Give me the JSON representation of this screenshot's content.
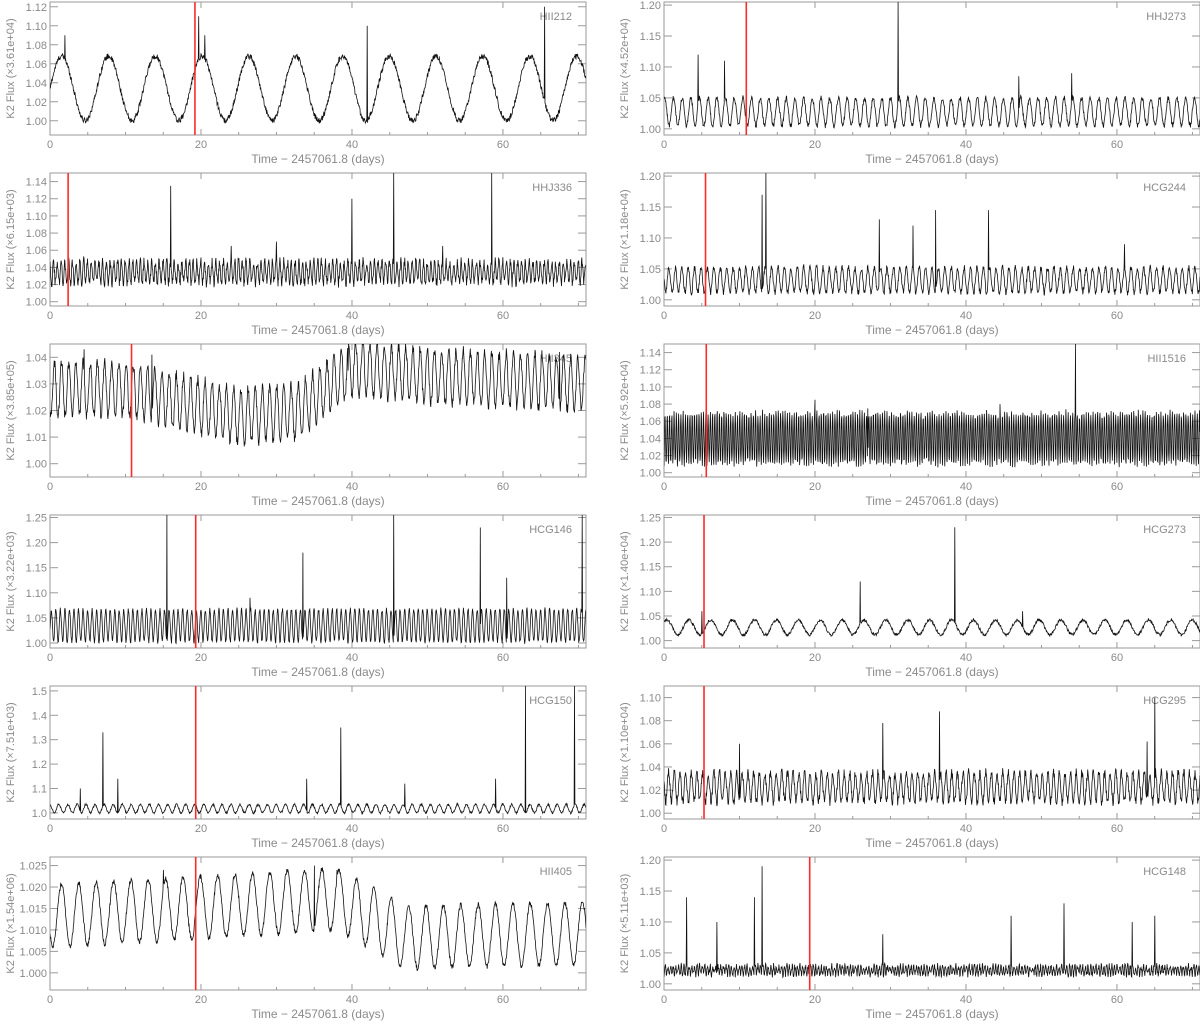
{
  "colors": {
    "trace": "#111111",
    "marker": "#ff2a2a",
    "axis": "#8a8a8a",
    "frame": "#9a9a9a"
  },
  "chart_data": [
    {
      "type": "line",
      "label": "HII212",
      "xlabel": "Time − 2457061.8 (days)",
      "ylabel": "K2 Flux (×3.61e+04)",
      "xlim": [
        0,
        71
      ],
      "ylim": [
        0.985,
        1.125
      ],
      "yticks": [
        1.0,
        1.02,
        1.04,
        1.06,
        1.08,
        1.1,
        1.12
      ],
      "xticks": [
        0,
        20,
        40,
        60
      ],
      "marker_x": 19.2,
      "baseline": 1.0,
      "amplitude": 0.068,
      "period": 6.2,
      "shape": "sine",
      "noise": 0.003,
      "spikes": [
        [
          19.7,
          1.11
        ],
        [
          42.0,
          1.1
        ],
        [
          65.5,
          1.12
        ],
        [
          2.0,
          1.09
        ],
        [
          20.5,
          1.09
        ]
      ]
    },
    {
      "type": "line",
      "label": "HHJ273",
      "xlabel": "Time − 2457061.8 (days)",
      "ylabel": "K2 Flux (×4.52e+04)",
      "xlim": [
        0,
        71
      ],
      "ylim": [
        0.99,
        1.205
      ],
      "yticks": [
        1.0,
        1.05,
        1.1,
        1.15,
        1.2
      ],
      "xticks": [
        0,
        20,
        40,
        60
      ],
      "marker_x": 10.9,
      "baseline": 1.005,
      "amplitude": 0.045,
      "period": 1.15,
      "shape": "sine",
      "noise": 0.004,
      "spikes": [
        [
          31.0,
          1.205
        ],
        [
          4.5,
          1.12
        ],
        [
          8.0,
          1.11
        ],
        [
          54.0,
          1.09
        ],
        [
          47.0,
          1.085
        ]
      ]
    },
    {
      "type": "line",
      "label": "HHJ336",
      "xlabel": "Time − 2457061.8 (days)",
      "ylabel": "K2 Flux (×6.15e+03)",
      "xlim": [
        0,
        71
      ],
      "ylim": [
        0.995,
        1.15
      ],
      "yticks": [
        1.0,
        1.02,
        1.04,
        1.06,
        1.08,
        1.1,
        1.12,
        1.14
      ],
      "xticks": [
        0,
        20,
        40,
        60
      ],
      "marker_x": 2.4,
      "baseline": 1.022,
      "amplitude": 0.025,
      "period": 0.5,
      "shape": "sine",
      "noise": 0.006,
      "spikes": [
        [
          16.0,
          1.135
        ],
        [
          40.0,
          1.12
        ],
        [
          45.5,
          1.15
        ],
        [
          58.5,
          1.15
        ],
        [
          30.0,
          1.07
        ],
        [
          24.0,
          1.065
        ],
        [
          52.0,
          1.065
        ]
      ]
    },
    {
      "type": "line",
      "label": "HCG244",
      "xlabel": "Time − 2457061.8 (days)",
      "ylabel": "K2 Flux (×1.18e+04)",
      "xlim": [
        0,
        71
      ],
      "ylim": [
        0.99,
        1.205
      ],
      "yticks": [
        1.0,
        1.05,
        1.1,
        1.15,
        1.2
      ],
      "xticks": [
        0,
        20,
        40,
        60
      ],
      "marker_x": 5.5,
      "baseline": 1.012,
      "amplitude": 0.04,
      "period": 0.85,
      "shape": "sine",
      "noise": 0.005,
      "spikes": [
        [
          13.0,
          1.17
        ],
        [
          13.5,
          1.205
        ],
        [
          28.5,
          1.13
        ],
        [
          33.0,
          1.12
        ],
        [
          36.0,
          1.145
        ],
        [
          43.0,
          1.145
        ],
        [
          61.0,
          1.09
        ]
      ]
    },
    {
      "type": "line",
      "label": "HII345",
      "xlabel": "Time − 2457061.8 (days)",
      "ylabel": "K2 Flux (×3.85e+05)",
      "xlim": [
        0,
        71
      ],
      "ylim": [
        0.995,
        1.045
      ],
      "yticks": [
        1.0,
        1.01,
        1.02,
        1.03,
        1.04
      ],
      "xticks": [
        0,
        20,
        40,
        60
      ],
      "marker_x": 10.8,
      "baseline": 1.018,
      "amplitude": 0.02,
      "period": 0.95,
      "shape": "sine",
      "noise": 0.002,
      "trend": [
        [
          0,
          0
        ],
        [
          10,
          0
        ],
        [
          25,
          -0.01
        ],
        [
          33,
          -0.008
        ],
        [
          40,
          0.008
        ],
        [
          50,
          0.005
        ],
        [
          71,
          0.002
        ]
      ],
      "spikes": [
        [
          4.5,
          1.043
        ],
        [
          13.5,
          1.041
        ],
        [
          39.5,
          1.035
        ],
        [
          59.5,
          1.039
        ],
        [
          67.5,
          1.042
        ]
      ]
    },
    {
      "type": "line",
      "label": "HII1516",
      "xlabel": "Time − 2457061.8 (days)",
      "ylabel": "K2 Flux (×5.92e+04)",
      "xlim": [
        0,
        71
      ],
      "ylim": [
        0.995,
        1.15
      ],
      "yticks": [
        1.0,
        1.02,
        1.04,
        1.06,
        1.08,
        1.1,
        1.12,
        1.14
      ],
      "xticks": [
        0,
        20,
        40,
        60
      ],
      "marker_x": 5.6,
      "baseline": 1.01,
      "amplitude": 0.06,
      "period": 0.3,
      "shape": "sine",
      "noise": 0.004,
      "spikes": [
        [
          54.5,
          1.15
        ],
        [
          20.0,
          1.085
        ],
        [
          44.5,
          1.08
        ],
        [
          27.0,
          1.075
        ]
      ]
    },
    {
      "type": "line",
      "label": "HCG146",
      "xlabel": "Time − 2457061.8 (days)",
      "ylabel": "K2 Flux (×3.22e+03)",
      "xlim": [
        0,
        71
      ],
      "ylim": [
        0.99,
        1.255
      ],
      "yticks": [
        1.0,
        1.05,
        1.1,
        1.15,
        1.2,
        1.25
      ],
      "xticks": [
        0,
        20,
        40,
        60
      ],
      "marker_x": 19.3,
      "baseline": 1.002,
      "amplitude": 0.065,
      "period": 0.6,
      "shape": "sine",
      "noise": 0.004,
      "spikes": [
        [
          15.5,
          1.255
        ],
        [
          26.5,
          1.09
        ],
        [
          33.5,
          1.18
        ],
        [
          45.5,
          1.255
        ],
        [
          57.0,
          1.23
        ],
        [
          60.5,
          1.13
        ],
        [
          70.5,
          1.255
        ]
      ]
    },
    {
      "type": "line",
      "label": "HCG273",
      "xlabel": "Time − 2457061.8 (days)",
      "ylabel": "K2 Flux (×1.40e+04)",
      "xlim": [
        0,
        71
      ],
      "ylim": [
        0.985,
        1.255
      ],
      "yticks": [
        1.0,
        1.05,
        1.1,
        1.15,
        1.2,
        1.25
      ],
      "xticks": [
        0,
        20,
        40,
        60
      ],
      "marker_x": 5.3,
      "baseline": 1.012,
      "amplitude": 0.03,
      "period": 2.9,
      "shape": "sine",
      "noise": 0.003,
      "spikes": [
        [
          26.0,
          1.12
        ],
        [
          38.5,
          1.23
        ],
        [
          47.5,
          1.06
        ],
        [
          5.0,
          1.06
        ]
      ]
    },
    {
      "type": "line",
      "label": "HCG150",
      "xlabel": "Time − 2457061.8 (days)",
      "ylabel": "K2 Flux (×7.51e+03)",
      "xlim": [
        0,
        71
      ],
      "ylim": [
        0.975,
        1.52
      ],
      "yticks": [
        1.0,
        1.1,
        1.2,
        1.3,
        1.4,
        1.5
      ],
      "xticks": [
        0,
        20,
        40,
        60
      ],
      "marker_x": 19.3,
      "baseline": 1.0,
      "amplitude": 0.035,
      "period": 1.2,
      "shape": "sine",
      "noise": 0.004,
      "spikes": [
        [
          7.0,
          1.33
        ],
        [
          9.0,
          1.14
        ],
        [
          4.0,
          1.1
        ],
        [
          34.0,
          1.14
        ],
        [
          38.5,
          1.35
        ],
        [
          47.0,
          1.12
        ],
        [
          59.0,
          1.14
        ],
        [
          63.0,
          1.52
        ],
        [
          69.5,
          1.52
        ]
      ]
    },
    {
      "type": "line",
      "label": "HCG295",
      "xlabel": "Time − 2457061.8 (days)",
      "ylabel": "K2 Flux (×1.10e+04)",
      "xlim": [
        0,
        71
      ],
      "ylim": [
        0.995,
        1.11
      ],
      "yticks": [
        1.0,
        1.02,
        1.04,
        1.06,
        1.08,
        1.1
      ],
      "xticks": [
        0,
        20,
        40,
        60
      ],
      "marker_x": 5.3,
      "baseline": 1.01,
      "amplitude": 0.025,
      "period": 0.75,
      "shape": "sine",
      "noise": 0.004,
      "spikes": [
        [
          10.0,
          1.06
        ],
        [
          29.0,
          1.078
        ],
        [
          36.5,
          1.088
        ],
        [
          64.0,
          1.062
        ],
        [
          65.0,
          1.1
        ]
      ]
    },
    {
      "type": "line",
      "label": "HII405",
      "xlabel": "Time − 2457061.8 (days)",
      "ylabel": "K2 Flux (×1.54e+06)",
      "xlim": [
        0,
        71
      ],
      "ylim": [
        0.996,
        1.027
      ],
      "yticks": [
        1.0,
        1.005,
        1.01,
        1.015,
        1.02,
        1.025
      ],
      "xticks": [
        0,
        20,
        40,
        60
      ],
      "marker_x": 19.3,
      "baseline": 1.006,
      "amplitude": 0.0145,
      "period": 2.3,
      "shape": "sine",
      "noise": 0.0006,
      "trend": [
        [
          0,
          0
        ],
        [
          20,
          0.002
        ],
        [
          38,
          0.004
        ],
        [
          47,
          -0.005
        ],
        [
          71,
          -0.004
        ]
      ],
      "spikes": [
        [
          15.0,
          1.024
        ],
        [
          35.0,
          1.025
        ],
        [
          38.0,
          1.024
        ]
      ]
    },
    {
      "type": "line",
      "label": "HCG148",
      "xlabel": "Time − 2457061.8 (days)",
      "ylabel": "K2 Flux (×5.11e+03)",
      "xlim": [
        0,
        71
      ],
      "ylim": [
        0.99,
        1.205
      ],
      "yticks": [
        1.0,
        1.05,
        1.1,
        1.15,
        1.2
      ],
      "xticks": [
        0,
        20,
        40,
        60
      ],
      "marker_x": 19.3,
      "baseline": 1.015,
      "amplitude": 0.014,
      "period": 0.35,
      "shape": "sine",
      "noise": 0.005,
      "spikes": [
        [
          3.0,
          1.14
        ],
        [
          7.0,
          1.1
        ],
        [
          12.0,
          1.14
        ],
        [
          13.0,
          1.19
        ],
        [
          29.0,
          1.08
        ],
        [
          46.0,
          1.11
        ],
        [
          53.0,
          1.13
        ],
        [
          62.0,
          1.1
        ],
        [
          65.0,
          1.11
        ]
      ]
    }
  ]
}
